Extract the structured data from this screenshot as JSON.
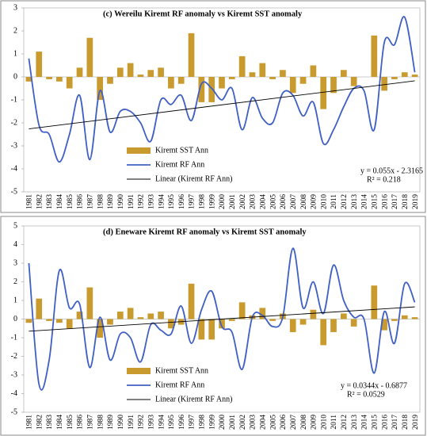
{
  "chart_data": [
    {
      "type": "bar_line",
      "title": "(c) Wereilu Kiremt RF anomaly vs Kiremt SST  anomaly",
      "categories": [
        "1981",
        "1982",
        "1983",
        "1984",
        "1985",
        "1986",
        "1987",
        "1988",
        "1989",
        "1990",
        "1991",
        "1992",
        "1993",
        "1994",
        "1995",
        "1996",
        "1997",
        "1998",
        "1999",
        "2000",
        "2001",
        "2002",
        "2003",
        "2004",
        "2005",
        "2006",
        "2007",
        "2008",
        "2009",
        "2010",
        "2011",
        "2012",
        "2013",
        "2014",
        "2015",
        "2016",
        "2017",
        "2018",
        "2019"
      ],
      "series": [
        {
          "name": "Kiremt SST Ann",
          "kind": "bar",
          "color": "#c99a2e",
          "values": [
            -0.2,
            1.1,
            -0.1,
            -0.2,
            -0.5,
            0.4,
            1.7,
            -1.0,
            -0.3,
            0.4,
            0.6,
            0.1,
            0.3,
            0.4,
            -0.5,
            -0.3,
            1.9,
            -1.1,
            -1.1,
            -0.5,
            -0.1,
            0.9,
            0.2,
            0.6,
            -0.1,
            0.3,
            -0.7,
            -0.3,
            0.5,
            -1.4,
            -0.7,
            0.3,
            -0.4,
            0.0,
            1.8,
            -0.6,
            -0.1,
            0.2,
            0.1
          ]
        },
        {
          "name": "Kiremt RF Ann",
          "kind": "line",
          "color": "#3f5fc4",
          "values": [
            0.8,
            -2.1,
            -2.5,
            -3.7,
            -2.5,
            -0.8,
            -3.6,
            -0.6,
            -2.4,
            -1.5,
            -1.5,
            -2.0,
            -2.8,
            -1.0,
            -1.2,
            -0.8,
            -1.9,
            -0.3,
            -0.5,
            -1.0,
            -0.5,
            -2.3,
            -0.9,
            -1.8,
            -2.0,
            -0.7,
            -0.8,
            -1.7,
            -1.1,
            -2.9,
            -2.3,
            -1.3,
            -0.5,
            -0.6,
            -2.3,
            1.5,
            1.4,
            2.6,
            0.2
          ]
        }
      ],
      "trendline": {
        "name": "Linear (Kiremt RF Ann)",
        "color": "#000000",
        "slope": 0.055,
        "intercept": -2.3165
      },
      "annotations": [
        "y = 0.055x - 2.3165",
        "R² = 0.218"
      ],
      "ylim": [
        -5,
        3
      ],
      "yticks": [
        -5,
        -4,
        -3,
        -2,
        -1,
        0,
        1,
        2,
        3
      ],
      "grid": false,
      "legend": "lower left"
    },
    {
      "type": "bar_line",
      "title": "(d) Eneware Kiremt RF anomaly vs Kiremt SST anomaly",
      "categories": [
        "1981",
        "1982",
        "1983",
        "1984",
        "1985",
        "1986",
        "1987",
        "1988",
        "1989",
        "1990",
        "1991",
        "1992",
        "1993",
        "1994",
        "1995",
        "1996",
        "1997",
        "1998",
        "1999",
        "2000",
        "2001",
        "2002",
        "2003",
        "2004",
        "2005",
        "2006",
        "2007",
        "2008",
        "2009",
        "2010",
        "2011",
        "2012",
        "2013",
        "2014",
        "2015",
        "2016",
        "2017",
        "2018",
        "2019"
      ],
      "series": [
        {
          "name": "Kiremt SST Ann",
          "kind": "bar",
          "color": "#c99a2e",
          "values": [
            -0.2,
            1.1,
            -0.1,
            -0.2,
            -0.5,
            0.4,
            1.7,
            -1.0,
            -0.3,
            0.4,
            0.6,
            0.1,
            0.3,
            0.4,
            -0.5,
            -0.3,
            1.9,
            -1.1,
            -1.1,
            -0.5,
            -0.1,
            0.9,
            0.2,
            0.6,
            -0.1,
            0.3,
            -0.7,
            -0.3,
            0.5,
            -1.4,
            -0.7,
            0.3,
            -0.4,
            0.0,
            1.8,
            -0.6,
            -0.1,
            0.2,
            0.1
          ]
        },
        {
          "name": "Kiremt RF Ann",
          "kind": "line",
          "color": "#3f5fc4",
          "values": [
            3.0,
            -3.5,
            -2.2,
            2.6,
            0.6,
            0.8,
            -2.6,
            0.1,
            -2.2,
            -0.8,
            -1.0,
            -2.3,
            -0.3,
            -0.6,
            -0.8,
            0.7,
            -1.3,
            0.5,
            1.5,
            -0.4,
            -0.7,
            -2.7,
            0.1,
            0.2,
            -0.4,
            0.1,
            3.8,
            0.6,
            2.0,
            0.3,
            2.9,
            1.0,
            0.1,
            0.0,
            -2.9,
            0.4,
            -1.3,
            1.9,
            0.9
          ]
        }
      ],
      "trendline": {
        "name": "Linear (Kiremt RF Ann)",
        "color": "#000000",
        "slope": 0.0344,
        "intercept": -0.6877
      },
      "annotations": [
        "y = 0.0344x - 0.6877",
        "R² = 0.0529"
      ],
      "ylim": [
        -5,
        5
      ],
      "yticks": [
        -5,
        -4,
        -3,
        -2,
        -1,
        0,
        1,
        2,
        3,
        4,
        5
      ],
      "grid": false,
      "legend": "lower left"
    }
  ]
}
